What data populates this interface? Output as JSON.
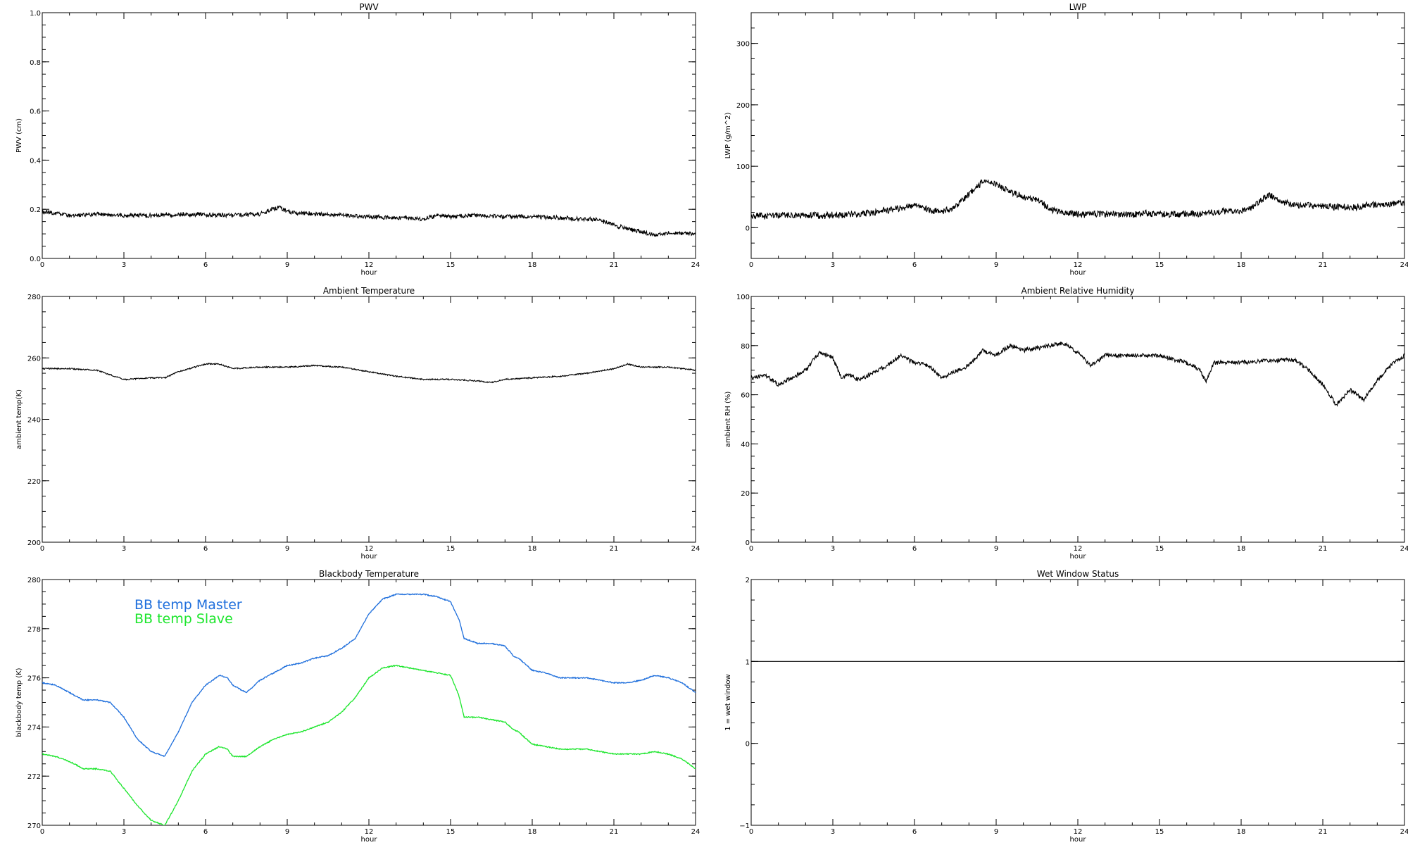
{
  "chart_data": [
    {
      "type": "line",
      "title": "PWV",
      "xlabel": "hour",
      "ylabel": "PWV (cm)",
      "xlim": [
        0,
        24
      ],
      "ylim": [
        0,
        1
      ],
      "xticks": [
        "0",
        "3",
        "6",
        "9",
        "12",
        "15",
        "18",
        "21",
        "24"
      ],
      "yticks": [
        "0.0",
        "0.2",
        "0.4",
        "0.6",
        "0.8",
        "1.0"
      ],
      "line_color": "#000000",
      "noise": 0.008,
      "series": [
        {
          "name": "",
          "x": [
            0,
            1,
            2,
            3,
            4,
            5,
            6,
            7,
            8,
            8.7,
            9,
            10,
            11,
            12,
            13,
            14,
            14.5,
            15,
            16,
            17,
            18,
            19,
            20,
            20.5,
            21,
            21.5,
            22,
            22.5,
            23,
            24
          ],
          "y": [
            0.19,
            0.175,
            0.18,
            0.175,
            0.175,
            0.18,
            0.18,
            0.175,
            0.18,
            0.21,
            0.19,
            0.18,
            0.175,
            0.17,
            0.165,
            0.16,
            0.175,
            0.17,
            0.175,
            0.17,
            0.17,
            0.165,
            0.16,
            0.155,
            0.135,
            0.12,
            0.11,
            0.095,
            0.105,
            0.1
          ]
        }
      ]
    },
    {
      "type": "line",
      "title": "LWP",
      "xlabel": "hour",
      "ylabel": "LWP (g/m^2)",
      "xlim": [
        0,
        24
      ],
      "ylim": [
        -50,
        350
      ],
      "xticks": [
        "0",
        "3",
        "6",
        "9",
        "12",
        "15",
        "18",
        "21",
        "24"
      ],
      "yticks": [
        "0",
        "100",
        "200",
        "300"
      ],
      "yticks_values": [
        0,
        100,
        200,
        300
      ],
      "line_color": "#000000",
      "noise": 5,
      "series": [
        {
          "name": "",
          "x": [
            0,
            1,
            2,
            3,
            4,
            5,
            5.5,
            6,
            6.5,
            7,
            7.5,
            8,
            8.5,
            9,
            9.5,
            10,
            10.5,
            11,
            11.5,
            12,
            13,
            14,
            15,
            16,
            17,
            18,
            18.5,
            19,
            19.5,
            20,
            21,
            22,
            23,
            24
          ],
          "y": [
            18,
            20,
            20,
            20,
            22,
            28,
            32,
            38,
            30,
            25,
            35,
            55,
            75,
            70,
            60,
            50,
            45,
            30,
            25,
            22,
            22,
            22,
            22,
            22,
            25,
            28,
            35,
            55,
            42,
            38,
            35,
            33,
            38,
            40
          ]
        }
      ]
    },
    {
      "type": "line",
      "title": "Ambient Temperature",
      "xlabel": "hour",
      "ylabel": "ambient temp(K)",
      "xlim": [
        0,
        24
      ],
      "ylim": [
        200,
        280
      ],
      "xticks": [
        "0",
        "3",
        "6",
        "9",
        "12",
        "15",
        "18",
        "21",
        "24"
      ],
      "yticks": [
        "200",
        "220",
        "240",
        "260",
        "280"
      ],
      "line_color": "#000000",
      "noise": 0.2,
      "series": [
        {
          "name": "",
          "x": [
            0,
            1,
            2,
            3,
            4,
            4.5,
            5,
            6,
            6.5,
            7,
            8,
            9,
            10,
            11,
            12,
            13,
            14,
            15,
            16,
            16.5,
            17,
            18,
            19,
            20,
            21,
            21.5,
            22,
            23,
            24
          ],
          "y": [
            256.5,
            256.5,
            256,
            253,
            253.5,
            253.5,
            255.5,
            258,
            258,
            256.5,
            257,
            257,
            257.5,
            257,
            255.5,
            254,
            253,
            253,
            252.5,
            252,
            253,
            253.5,
            254,
            255,
            256.5,
            258,
            257,
            257,
            256
          ]
        }
      ]
    },
    {
      "type": "line",
      "title": "Ambient Relative Humidity",
      "xlabel": "hour",
      "ylabel": "ambient RH (%)",
      "xlim": [
        0,
        24
      ],
      "ylim": [
        0,
        100
      ],
      "xticks": [
        "0",
        "3",
        "6",
        "9",
        "12",
        "15",
        "18",
        "21",
        "24"
      ],
      "yticks": [
        "0",
        "20",
        "40",
        "60",
        "80",
        "100"
      ],
      "line_color": "#000000",
      "noise": 0.8,
      "series": [
        {
          "name": "",
          "x": [
            0,
            0.5,
            1,
            1.5,
            2,
            2.5,
            3,
            3.3,
            3.6,
            4,
            5,
            5.5,
            6,
            6.5,
            7,
            8,
            8.5,
            9,
            9.5,
            10,
            11,
            11.5,
            12,
            12.5,
            13,
            14,
            15,
            16,
            16.5,
            16.7,
            17,
            18,
            19,
            20,
            20.5,
            21,
            21.5,
            22,
            22.5,
            23,
            23.5,
            24
          ],
          "y": [
            67,
            68,
            64,
            67,
            70,
            77,
            75,
            67,
            68,
            66,
            72,
            76,
            73,
            72,
            67,
            72,
            78,
            76,
            80,
            78,
            80,
            81,
            77,
            72,
            76,
            76,
            76,
            73,
            70,
            65,
            73,
            73,
            74,
            74,
            70,
            64,
            56,
            62,
            58,
            66,
            72,
            76
          ]
        }
      ]
    },
    {
      "type": "line",
      "title": "Blackbody Temperature",
      "xlabel": "hour",
      "ylabel": "blackbody temp (K)",
      "xlim": [
        0,
        24
      ],
      "ylim": [
        270,
        280
      ],
      "xticks": [
        "0",
        "3",
        "6",
        "9",
        "12",
        "15",
        "18",
        "21",
        "24"
      ],
      "yticks": [
        "270",
        "272",
        "274",
        "276",
        "278",
        "280"
      ],
      "legend": "top-left",
      "noise": 0.02,
      "series": [
        {
          "name": "BB temp Master",
          "color": "#1f6fdc",
          "x": [
            0,
            0.5,
            1,
            1.5,
            2,
            2.5,
            3,
            3.5,
            4,
            4.5,
            5,
            5.5,
            6,
            6.5,
            6.8,
            7,
            7.5,
            8,
            8.5,
            9,
            9.5,
            10,
            10.5,
            11,
            11.5,
            12,
            12.5,
            13,
            13.5,
            14,
            14.5,
            15,
            15.3,
            15.5,
            16,
            16.5,
            17,
            17.3,
            17.5,
            18,
            18.5,
            19,
            19.5,
            20,
            20.5,
            21,
            21.5,
            22,
            22.5,
            23,
            23.5,
            24
          ],
          "y": [
            275.8,
            275.7,
            275.4,
            275.1,
            275.1,
            275.0,
            274.4,
            273.5,
            273.0,
            272.8,
            273.8,
            275.0,
            275.7,
            276.1,
            276.0,
            275.7,
            275.4,
            275.9,
            276.2,
            276.5,
            276.6,
            276.8,
            276.9,
            277.2,
            277.6,
            278.6,
            279.2,
            279.4,
            279.4,
            279.4,
            279.3,
            279.1,
            278.4,
            277.6,
            277.4,
            277.4,
            277.3,
            276.9,
            276.8,
            276.3,
            276.2,
            276.0,
            276.0,
            276.0,
            275.9,
            275.8,
            275.8,
            275.9,
            276.1,
            276.0,
            275.8,
            275.4
          ]
        },
        {
          "name": "BB temp Slave",
          "color": "#1ee62e",
          "x": [
            0,
            0.5,
            1,
            1.5,
            2,
            2.5,
            3,
            3.5,
            4,
            4.5,
            5,
            5.5,
            6,
            6.5,
            6.8,
            7,
            7.5,
            8,
            8.5,
            9,
            9.5,
            10,
            10.5,
            11,
            11.5,
            12,
            12.5,
            13,
            13.5,
            14,
            14.5,
            15,
            15.3,
            15.5,
            16,
            16.5,
            17,
            17.3,
            17.5,
            18,
            18.5,
            19,
            19.5,
            20,
            20.5,
            21,
            21.5,
            22,
            22.5,
            23,
            23.5,
            24
          ],
          "y": [
            272.9,
            272.8,
            272.6,
            272.3,
            272.3,
            272.2,
            271.5,
            270.8,
            270.2,
            270.0,
            271.0,
            272.2,
            272.9,
            273.2,
            273.1,
            272.8,
            272.8,
            273.2,
            273.5,
            273.7,
            273.8,
            274.0,
            274.2,
            274.6,
            275.2,
            276.0,
            276.4,
            276.5,
            276.4,
            276.3,
            276.2,
            276.1,
            275.3,
            274.4,
            274.4,
            274.3,
            274.2,
            273.9,
            273.8,
            273.3,
            273.2,
            273.1,
            273.1,
            273.1,
            273.0,
            272.9,
            272.9,
            272.9,
            273.0,
            272.9,
            272.7,
            272.3
          ]
        }
      ]
    },
    {
      "type": "line",
      "title": "Wet Window Status",
      "xlabel": "hour",
      "ylabel": "1 = wet window",
      "xlim": [
        0,
        24
      ],
      "ylim": [
        -1,
        2
      ],
      "xticks": [
        "0",
        "3",
        "6",
        "9",
        "12",
        "15",
        "18",
        "21",
        "24"
      ],
      "yticks": [
        "−1",
        "0",
        "1",
        "2"
      ],
      "yticks_values": [
        -1,
        0,
        1,
        2
      ],
      "line_color": "#000000",
      "noise": 0,
      "series": [
        {
          "name": "",
          "x": [
            0,
            24
          ],
          "y": [
            1,
            1
          ]
        }
      ]
    }
  ]
}
